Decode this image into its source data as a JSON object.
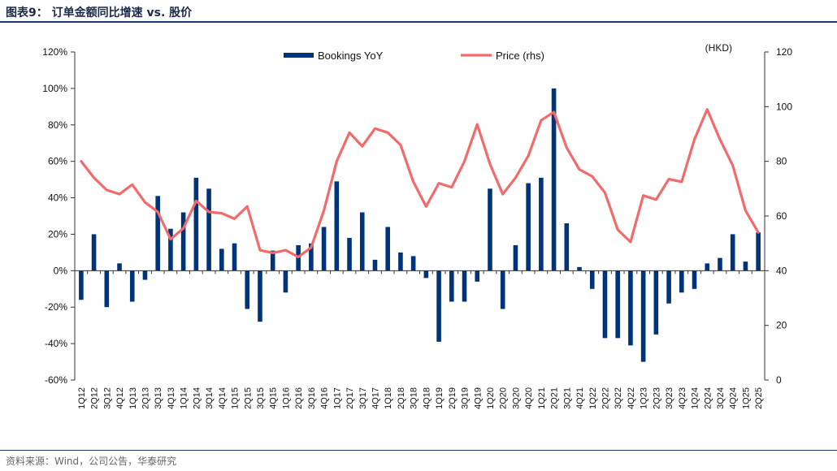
{
  "figure": {
    "title": "图表9： 订单金额同比增速 vs. 股价",
    "source": "资料来源：Wind，公司公告，华泰研究"
  },
  "chart_data": {
    "type": "bar+line",
    "categories": [
      "1Q12",
      "2Q12",
      "3Q12",
      "4Q12",
      "1Q13",
      "2Q13",
      "3Q13",
      "4Q13",
      "1Q14",
      "2Q14",
      "3Q14",
      "4Q14",
      "1Q15",
      "2Q15",
      "3Q15",
      "4Q15",
      "1Q16",
      "2Q16",
      "3Q16",
      "4Q16",
      "1Q17",
      "2Q17",
      "3Q17",
      "4Q17",
      "1Q18",
      "2Q18",
      "3Q18",
      "4Q18",
      "1Q19",
      "2Q19",
      "3Q19",
      "4Q19",
      "1Q20",
      "2Q20",
      "3Q20",
      "4Q20",
      "1Q21",
      "2Q21",
      "3Q21",
      "4Q21",
      "1Q22",
      "2Q22",
      "3Q22",
      "4Q22",
      "1Q23",
      "2Q23",
      "3Q23",
      "4Q23",
      "1Q24",
      "2Q24",
      "3Q24",
      "4Q24",
      "1Q25",
      "2Q25"
    ],
    "series": [
      {
        "name": "Bookings YoY",
        "kind": "bar",
        "axis": "left",
        "color": "#003478",
        "values": [
          -16,
          20,
          -20,
          4,
          -17,
          -5,
          41,
          23,
          32,
          51,
          45,
          12,
          15,
          -21,
          -28,
          11,
          -12,
          14,
          15,
          24,
          49,
          18,
          32,
          6,
          24,
          10,
          8,
          -4,
          -39,
          -17,
          -17,
          -6,
          45,
          -21,
          14,
          48,
          51,
          100,
          26,
          2,
          -10,
          -37,
          -37,
          -41,
          -50,
          -35,
          -18,
          -12,
          -10,
          4,
          7,
          20,
          5,
          21
        ]
      },
      {
        "name": "Price (rhs)",
        "kind": "line",
        "axis": "right",
        "color": "#f26b6b",
        "values": [
          80,
          74,
          69.5,
          68,
          71.5,
          65,
          61.5,
          51.5,
          55.5,
          65.5,
          61.5,
          61,
          59,
          63.5,
          47.5,
          46.5,
          47.5,
          45,
          48.5,
          62,
          80,
          90.5,
          85.5,
          92,
          90.5,
          86,
          72.5,
          63.5,
          72,
          70.5,
          80,
          93.5,
          79,
          68,
          74,
          82,
          95,
          98,
          85,
          77,
          74.5,
          68.5,
          55,
          50.5,
          67.5,
          66,
          73.5,
          72.5,
          88,
          99,
          88,
          78.5,
          62,
          54
        ]
      }
    ],
    "y_left": {
      "min": -60,
      "max": 120,
      "step": 20,
      "format": "percent"
    },
    "y_right": {
      "min": 0,
      "max": 120,
      "step": 20,
      "unit_label": "(HKD)"
    },
    "legend": "top-center",
    "grid": false
  }
}
